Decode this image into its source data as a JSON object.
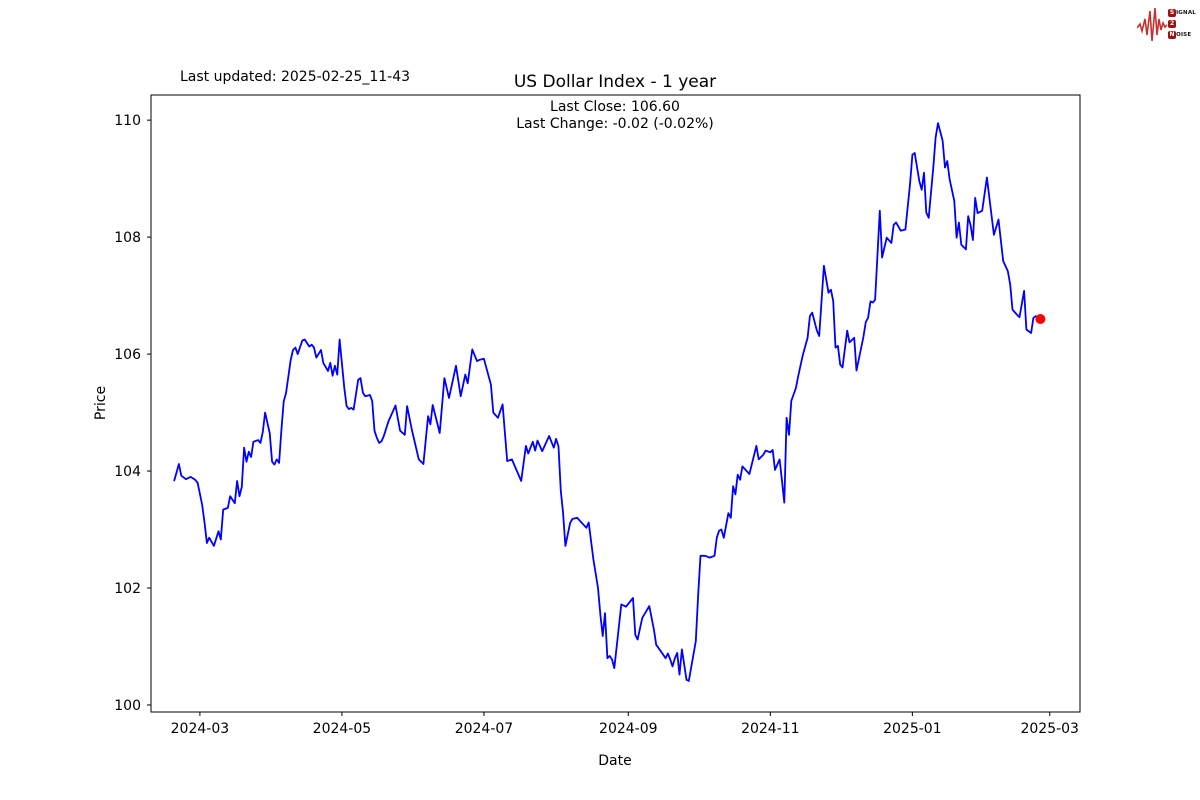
{
  "header": {
    "last_updated": "Last updated: 2025-02-25_11-43",
    "title": "US Dollar Index - 1 year",
    "subtitle_line1": "Last Close: 106.60",
    "subtitle_line2": "Last Change: -0.02 (-0.02%)"
  },
  "logo": {
    "waveform_color": "#c53030",
    "box_color": "#9e1212",
    "rows": [
      {
        "box": "S",
        "rest": "IGNAL"
      },
      {
        "box": "2",
        "rest": ""
      },
      {
        "box": "N",
        "rest": "OISE"
      }
    ]
  },
  "chart_data": {
    "type": "line",
    "title": "US Dollar Index - 1 year",
    "xlabel": "Date",
    "ylabel": "Price",
    "grid": false,
    "line_color": "#0000ff",
    "last_point_color": "#ff0000",
    "axis_color": "#000000",
    "last_close": 106.6,
    "last_change": "-0.02 (-0.02%)",
    "x_domain_days": [
      -10,
      389
    ],
    "ylim": [
      99.88,
      110.43
    ],
    "y_ticks": [
      100,
      102,
      104,
      106,
      108,
      110
    ],
    "x_ticks": [
      {
        "label": "2024-03",
        "day": 11
      },
      {
        "label": "2024-05",
        "day": 72
      },
      {
        "label": "2024-07",
        "day": 133
      },
      {
        "label": "2024-09",
        "day": 195
      },
      {
        "label": "2024-11",
        "day": 256
      },
      {
        "label": "2025-01",
        "day": 317
      },
      {
        "label": "2025-03",
        "day": 376
      }
    ],
    "series": [
      {
        "name": "US Dollar Index",
        "points": [
          [
            0,
            103.84
          ],
          [
            2,
            104.12
          ],
          [
            3,
            103.92
          ],
          [
            5,
            103.86
          ],
          [
            7,
            103.9
          ],
          [
            9,
            103.85
          ],
          [
            10,
            103.8
          ],
          [
            12,
            103.42
          ],
          [
            13,
            103.11
          ],
          [
            14,
            102.77
          ],
          [
            15,
            102.86
          ],
          [
            17,
            102.72
          ],
          [
            19,
            102.97
          ],
          [
            20,
            102.83
          ],
          [
            21,
            103.34
          ],
          [
            23,
            103.37
          ],
          [
            24,
            103.57
          ],
          [
            26,
            103.45
          ],
          [
            27,
            103.83
          ],
          [
            28,
            103.57
          ],
          [
            29,
            103.73
          ],
          [
            30,
            104.4
          ],
          [
            31,
            104.16
          ],
          [
            32,
            104.33
          ],
          [
            33,
            104.24
          ],
          [
            34,
            104.5
          ],
          [
            36,
            104.53
          ],
          [
            37,
            104.48
          ],
          [
            38,
            104.67
          ],
          [
            39,
            105.0
          ],
          [
            41,
            104.65
          ],
          [
            42,
            104.16
          ],
          [
            43,
            104.11
          ],
          [
            44,
            104.2
          ],
          [
            45,
            104.14
          ],
          [
            46,
            104.7
          ],
          [
            47,
            105.19
          ],
          [
            48,
            105.33
          ],
          [
            50,
            105.9
          ],
          [
            51,
            106.07
          ],
          [
            52,
            106.11
          ],
          [
            53,
            106.0
          ],
          [
            55,
            106.23
          ],
          [
            56,
            106.25
          ],
          [
            58,
            106.13
          ],
          [
            59,
            106.16
          ],
          [
            60,
            106.11
          ],
          [
            61,
            105.94
          ],
          [
            63,
            106.07
          ],
          [
            64,
            105.85
          ],
          [
            66,
            105.71
          ],
          [
            67,
            105.85
          ],
          [
            68,
            105.63
          ],
          [
            69,
            105.8
          ],
          [
            70,
            105.65
          ],
          [
            71,
            106.25
          ],
          [
            73,
            105.42
          ],
          [
            74,
            105.11
          ],
          [
            75,
            105.06
          ],
          [
            76,
            105.08
          ],
          [
            77,
            105.05
          ],
          [
            79,
            105.56
          ],
          [
            80,
            105.59
          ],
          [
            81,
            105.34
          ],
          [
            82,
            105.28
          ],
          [
            84,
            105.3
          ],
          [
            85,
            105.2
          ],
          [
            86,
            104.69
          ],
          [
            87,
            104.57
          ],
          [
            88,
            104.48
          ],
          [
            89,
            104.51
          ],
          [
            90,
            104.6
          ],
          [
            92,
            104.85
          ],
          [
            95,
            105.12
          ],
          [
            97,
            104.69
          ],
          [
            99,
            104.62
          ],
          [
            100,
            105.11
          ],
          [
            102,
            104.71
          ],
          [
            105,
            104.2
          ],
          [
            107,
            104.12
          ],
          [
            109,
            104.94
          ],
          [
            110,
            104.8
          ],
          [
            111,
            105.13
          ],
          [
            114,
            104.65
          ],
          [
            116,
            105.59
          ],
          [
            118,
            105.25
          ],
          [
            121,
            105.8
          ],
          [
            123,
            105.28
          ],
          [
            125,
            105.65
          ],
          [
            126,
            105.5
          ],
          [
            128,
            106.08
          ],
          [
            130,
            105.88
          ],
          [
            131,
            105.9
          ],
          [
            133,
            105.92
          ],
          [
            136,
            105.48
          ],
          [
            137,
            105.0
          ],
          [
            139,
            104.91
          ],
          [
            141,
            105.14
          ],
          [
            143,
            104.17
          ],
          [
            145,
            104.2
          ],
          [
            149,
            103.83
          ],
          [
            151,
            104.43
          ],
          [
            152,
            104.3
          ],
          [
            154,
            104.5
          ],
          [
            155,
            104.35
          ],
          [
            156,
            104.52
          ],
          [
            158,
            104.34
          ],
          [
            161,
            104.6
          ],
          [
            163,
            104.4
          ],
          [
            164,
            104.55
          ],
          [
            165,
            104.42
          ],
          [
            166,
            103.66
          ],
          [
            167,
            103.28
          ],
          [
            168,
            102.72
          ],
          [
            170,
            103.11
          ],
          [
            171,
            103.18
          ],
          [
            173,
            103.2
          ],
          [
            174,
            103.16
          ],
          [
            177,
            103.03
          ],
          [
            178,
            103.12
          ],
          [
            180,
            102.49
          ],
          [
            182,
            102.0
          ],
          [
            183,
            101.54
          ],
          [
            184,
            101.18
          ],
          [
            185,
            101.57
          ],
          [
            186,
            100.8
          ],
          [
            187,
            100.84
          ],
          [
            188,
            100.78
          ],
          [
            189,
            100.63
          ],
          [
            190,
            101.0
          ],
          [
            192,
            101.72
          ],
          [
            194,
            101.68
          ],
          [
            197,
            101.83
          ],
          [
            198,
            101.2
          ],
          [
            199,
            101.12
          ],
          [
            201,
            101.49
          ],
          [
            204,
            101.69
          ],
          [
            206,
            101.29
          ],
          [
            207,
            101.03
          ],
          [
            210,
            100.86
          ],
          [
            211,
            100.8
          ],
          [
            212,
            100.88
          ],
          [
            213,
            100.78
          ],
          [
            214,
            100.66
          ],
          [
            215,
            100.8
          ],
          [
            216,
            100.89
          ],
          [
            217,
            100.52
          ],
          [
            218,
            100.95
          ],
          [
            220,
            100.43
          ],
          [
            221,
            100.41
          ],
          [
            224,
            101.09
          ],
          [
            225,
            101.89
          ],
          [
            226,
            102.55
          ],
          [
            228,
            102.55
          ],
          [
            230,
            102.52
          ],
          [
            232,
            102.55
          ],
          [
            233,
            102.86
          ],
          [
            234,
            102.98
          ],
          [
            235,
            103.0
          ],
          [
            236,
            102.86
          ],
          [
            238,
            103.28
          ],
          [
            239,
            103.2
          ],
          [
            240,
            103.74
          ],
          [
            241,
            103.6
          ],
          [
            242,
            103.94
          ],
          [
            243,
            103.85
          ],
          [
            244,
            104.08
          ],
          [
            247,
            103.95
          ],
          [
            250,
            104.43
          ],
          [
            251,
            104.2
          ],
          [
            253,
            104.28
          ],
          [
            254,
            104.35
          ],
          [
            256,
            104.32
          ],
          [
            257,
            104.36
          ],
          [
            258,
            104.02
          ],
          [
            260,
            104.2
          ],
          [
            261,
            103.83
          ],
          [
            262,
            103.46
          ],
          [
            263,
            104.91
          ],
          [
            264,
            104.62
          ],
          [
            265,
            105.2
          ],
          [
            267,
            105.42
          ],
          [
            268,
            105.63
          ],
          [
            270,
            105.99
          ],
          [
            272,
            106.28
          ],
          [
            273,
            106.65
          ],
          [
            274,
            106.71
          ],
          [
            276,
            106.4
          ],
          [
            277,
            106.31
          ],
          [
            279,
            107.51
          ],
          [
            281,
            107.05
          ],
          [
            282,
            107.1
          ],
          [
            283,
            106.91
          ],
          [
            284,
            106.11
          ],
          [
            285,
            106.14
          ],
          [
            286,
            105.82
          ],
          [
            287,
            105.77
          ],
          [
            289,
            106.4
          ],
          [
            290,
            106.2
          ],
          [
            292,
            106.28
          ],
          [
            293,
            105.72
          ],
          [
            296,
            106.3
          ],
          [
            297,
            106.55
          ],
          [
            298,
            106.62
          ],
          [
            299,
            106.9
          ],
          [
            300,
            106.88
          ],
          [
            301,
            106.93
          ],
          [
            303,
            108.45
          ],
          [
            304,
            107.65
          ],
          [
            306,
            107.99
          ],
          [
            308,
            107.9
          ],
          [
            309,
            108.21
          ],
          [
            310,
            108.25
          ],
          [
            312,
            108.11
          ],
          [
            314,
            108.13
          ],
          [
            316,
            108.9
          ],
          [
            317,
            109.41
          ],
          [
            318,
            109.44
          ],
          [
            320,
            108.96
          ],
          [
            321,
            108.81
          ],
          [
            322,
            109.1
          ],
          [
            323,
            108.42
          ],
          [
            324,
            108.33
          ],
          [
            326,
            109.19
          ],
          [
            327,
            109.7
          ],
          [
            328,
            109.95
          ],
          [
            330,
            109.65
          ],
          [
            331,
            109.19
          ],
          [
            332,
            109.3
          ],
          [
            333,
            108.99
          ],
          [
            335,
            108.62
          ],
          [
            336,
            107.99
          ],
          [
            337,
            108.25
          ],
          [
            338,
            107.87
          ],
          [
            340,
            107.79
          ],
          [
            341,
            108.36
          ],
          [
            342,
            108.2
          ],
          [
            343,
            107.95
          ],
          [
            344,
            108.67
          ],
          [
            345,
            108.41
          ],
          [
            347,
            108.45
          ],
          [
            349,
            109.02
          ],
          [
            352,
            108.04
          ],
          [
            354,
            108.3
          ],
          [
            356,
            107.59
          ],
          [
            358,
            107.42
          ],
          [
            359,
            107.19
          ],
          [
            360,
            106.76
          ],
          [
            362,
            106.67
          ],
          [
            363,
            106.63
          ],
          [
            365,
            107.08
          ],
          [
            366,
            106.42
          ],
          [
            368,
            106.36
          ],
          [
            369,
            106.62
          ],
          [
            370,
            106.65
          ],
          [
            371,
            106.62
          ],
          [
            372,
            106.6
          ]
        ]
      }
    ]
  }
}
